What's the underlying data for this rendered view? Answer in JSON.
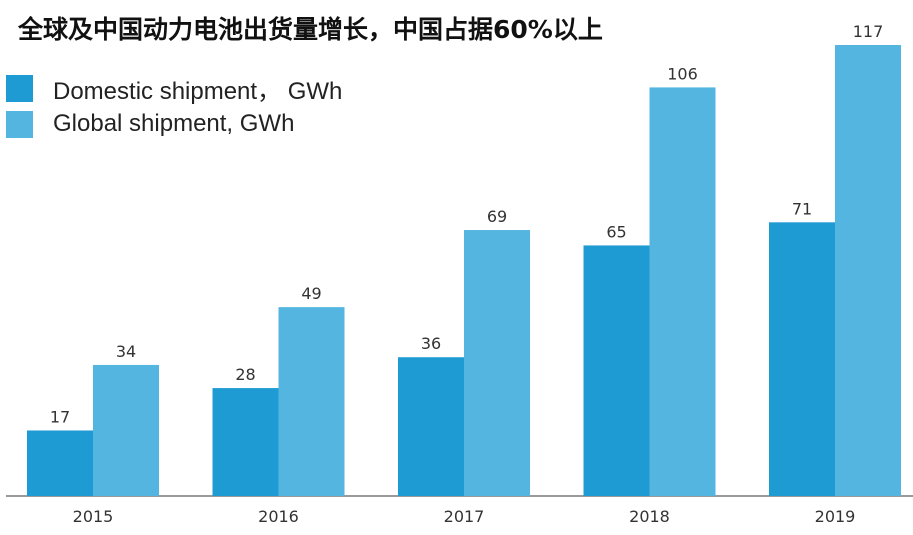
{
  "chart_data": {
    "type": "bar",
    "title": "全球及中国动力电池出货量增长，中国占据60%以上",
    "categories": [
      "2015",
      "2016",
      "2017",
      "2018",
      "2019"
    ],
    "series": [
      {
        "name": "Domestic shipment， GWh",
        "values": [
          17,
          28,
          36,
          65,
          71
        ],
        "color": "#1f9bd3"
      },
      {
        "name": "Global shipment, GWh",
        "values": [
          34,
          49,
          69,
          106,
          117
        ],
        "color": "#54b6e0"
      }
    ],
    "ylim": [
      0,
      117
    ],
    "grid": false,
    "legend_position": "top-left",
    "data_labels": true
  },
  "colors": {
    "axis": "#9a9a9a",
    "text": "#333333"
  }
}
